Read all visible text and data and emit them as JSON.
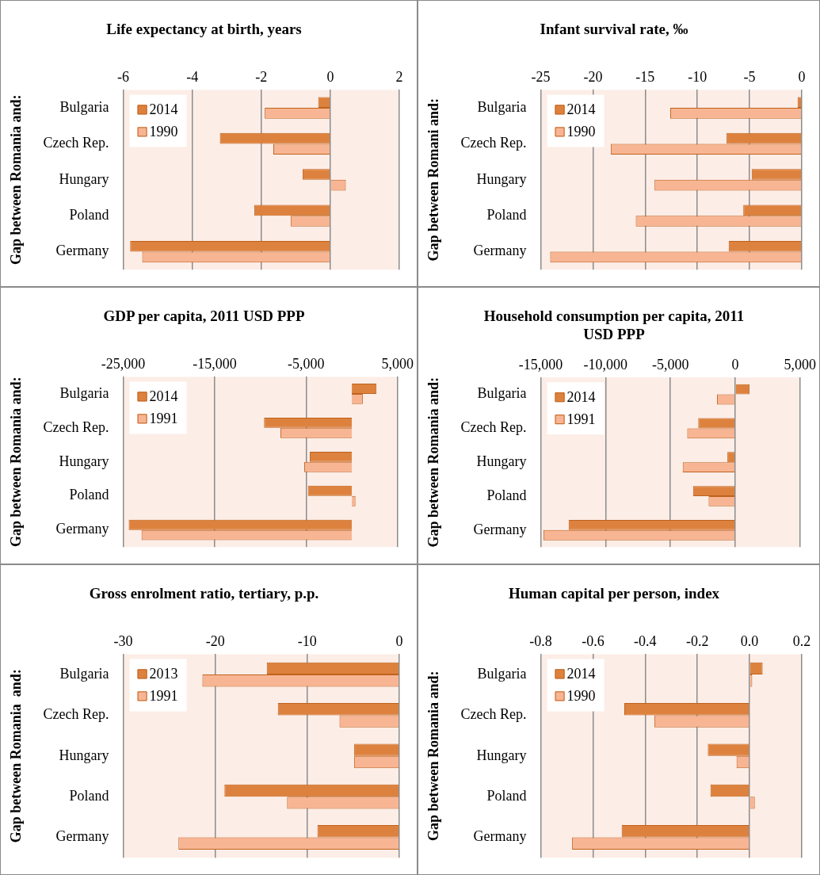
{
  "chart_data": [
    {
      "type": "bar",
      "orientation": "horizontal",
      "title": "Life expectancy at birth, years",
      "ylabel": "Gap between Romania and:",
      "categories": [
        "Bulgaria",
        "Czech Rep.",
        "Hungary",
        "Poland",
        "Germany"
      ],
      "series": [
        {
          "name": "2014",
          "color": "#dd823e",
          "values": [
            -0.35,
            -3.2,
            -0.8,
            -2.2,
            -5.8
          ]
        },
        {
          "name": "1990",
          "color": "#f8b593",
          "values": [
            -1.9,
            -1.65,
            0.45,
            -1.15,
            -5.45
          ]
        }
      ],
      "xlim": [
        -6,
        2
      ],
      "xticks": [
        -6,
        -4,
        -2,
        0,
        2
      ],
      "grid": "x",
      "legend": "top left"
    },
    {
      "type": "bar",
      "orientation": "horizontal",
      "title": "Infant survival rate, ‰",
      "ylabel": "Gap between Romani and:",
      "categories": [
        "Bulgaria",
        "Czech Rep.",
        "Hungary",
        "Poland",
        "Germany"
      ],
      "series": [
        {
          "name": "2014",
          "color": "#dd823e",
          "values": [
            -0.4,
            -7.2,
            -4.8,
            -5.6,
            -7
          ]
        },
        {
          "name": "1990",
          "color": "#f8b593",
          "values": [
            -12.6,
            -18.3,
            -14.1,
            -15.9,
            -24.1
          ]
        }
      ],
      "xlim": [
        -25,
        0
      ],
      "xticks": [
        -25,
        -20,
        -15,
        -10,
        -5,
        0
      ],
      "grid": "x",
      "legend": "top left"
    },
    {
      "type": "bar",
      "orientation": "horizontal",
      "title": "GDP per capita, 2011 USD PPP",
      "ylabel": "Gap between Romania and:",
      "categories": [
        "Bulgaria",
        "Czech Rep.",
        "Hungary",
        "Poland",
        "Germany"
      ],
      "series": [
        {
          "name": "2014",
          "color": "#dd823e",
          "values": [
            2700,
            -9600,
            -4600,
            -4800,
            -24400
          ]
        },
        {
          "name": "1991",
          "color": "#f8b593",
          "values": [
            1200,
            -7800,
            -5200,
            400,
            -23000
          ]
        }
      ],
      "xlim": [
        -25000,
        5000
      ],
      "xticks": [
        {
          "value": -25000,
          "label": "-25,000"
        },
        {
          "value": -15000,
          "label": "-15,000"
        },
        {
          "value": -5000,
          "label": "-5,000"
        },
        {
          "value": 5000,
          "label": "5,000"
        }
      ],
      "grid": "x",
      "legend": "top left"
    },
    {
      "type": "bar",
      "orientation": "horizontal",
      "title": "Household consumption per capita, 2011 USD PPP",
      "ylabel": "Gap between Romania and:",
      "categories": [
        "Bulgaria",
        "Czech Rep.",
        "Hungary",
        "Poland",
        "Germany"
      ],
      "series": [
        {
          "name": "2014",
          "color": "#dd823e",
          "values": [
            1100,
            -2850,
            -600,
            -3250,
            -12850
          ]
        },
        {
          "name": "1991",
          "color": "#f8b593",
          "values": [
            -1400,
            -3700,
            -4050,
            -2050,
            -14800
          ]
        }
      ],
      "xlim": [
        -15000,
        5000
      ],
      "xticks": [
        {
          "value": -15000,
          "label": "-15,000"
        },
        {
          "value": -10000,
          "label": "-10,000"
        },
        {
          "value": -5000,
          "label": "-5,000"
        },
        0,
        {
          "value": 5000,
          "label": "5,000"
        }
      ],
      "grid": "x",
      "legend": "top left"
    },
    {
      "type": "bar",
      "orientation": "horizontal",
      "title": "Gross enrolment ratio, tertiary, p.p.",
      "ylabel": "Gap between Romania  and:",
      "categories": [
        "Bulgaria",
        "Czech Rep.",
        "Hungary",
        "Poland",
        "Germany"
      ],
      "series": [
        {
          "name": "2013",
          "color": "#dd823e",
          "values": [
            -14.4,
            -13.2,
            -4.9,
            -19,
            -8.9
          ]
        },
        {
          "name": "1991",
          "color": "#f8b593",
          "values": [
            -21.4,
            -6.5,
            -4.9,
            -12.2,
            -24
          ]
        }
      ],
      "xlim": [
        -30,
        0
      ],
      "xticks": [
        -30,
        -20,
        -10,
        0
      ],
      "grid": "x",
      "legend": "top left"
    },
    {
      "type": "bar",
      "orientation": "horizontal",
      "title": "Human capital per person, index",
      "ylabel": "Gap between Romania and:",
      "categories": [
        "Bulgaria",
        "Czech Rep.",
        "Hungary",
        "Poland",
        "Germany"
      ],
      "series": [
        {
          "name": "2014",
          "color": "#dd823e",
          "values": [
            0.05,
            -0.48,
            -0.16,
            -0.15,
            -0.49
          ]
        },
        {
          "name": "1990",
          "color": "#f8b593",
          "values": [
            0.01,
            -0.365,
            -0.05,
            0.02,
            -0.68
          ]
        }
      ],
      "xlim": [
        -0.8,
        0.2
      ],
      "xticks": [
        -0.8,
        -0.6,
        -0.4,
        -0.2,
        {
          "value": 0,
          "label": "0.0"
        },
        0.2
      ],
      "grid": "x",
      "legend": "top left"
    }
  ]
}
